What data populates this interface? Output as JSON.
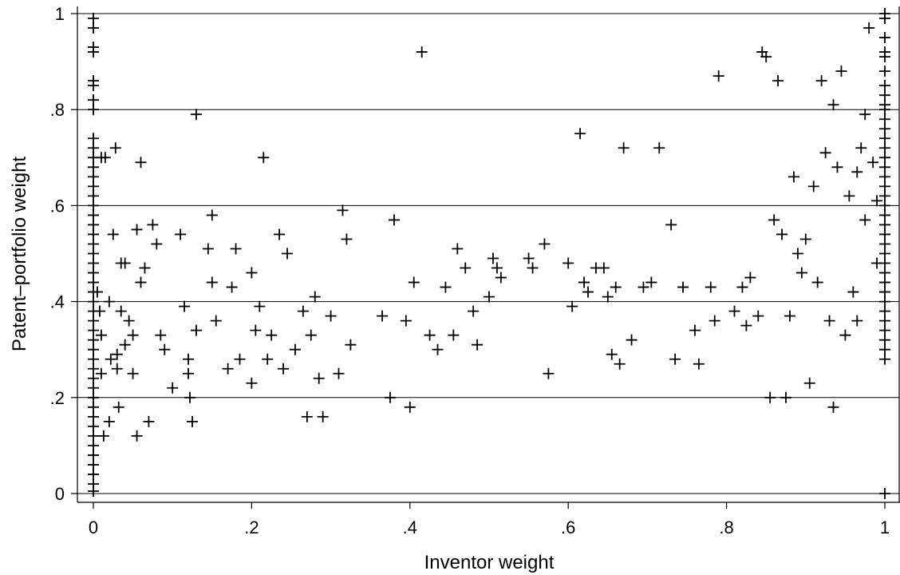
{
  "chart_data": {
    "type": "scatter",
    "title": "",
    "xlabel": "Inventor weight",
    "ylabel": "Patent–portfolio weight",
    "xlim": [
      0,
      1
    ],
    "ylim": [
      0,
      1
    ],
    "grid": "horizontal",
    "marker": "plus",
    "x_ticks": [
      {
        "value": 0,
        "label": "0"
      },
      {
        "value": 0.2,
        "label": ".2"
      },
      {
        "value": 0.4,
        "label": ".4"
      },
      {
        "value": 0.6,
        "label": ".6"
      },
      {
        "value": 0.8,
        "label": ".8"
      },
      {
        "value": 1,
        "label": "1"
      }
    ],
    "y_ticks": [
      {
        "value": 0,
        "label": "0"
      },
      {
        "value": 0.2,
        "label": ".2"
      },
      {
        "value": 0.4,
        "label": ".4"
      },
      {
        "value": 0.6,
        "label": ".6"
      },
      {
        "value": 0.8,
        "label": ".8"
      },
      {
        "value": 1,
        "label": "1"
      }
    ],
    "points": [
      [
        0,
        0.99
      ],
      [
        0,
        0.97
      ],
      [
        0,
        0.93
      ],
      [
        0,
        0.92
      ],
      [
        0,
        0.86
      ],
      [
        0,
        0.85
      ],
      [
        0,
        0.82
      ],
      [
        0,
        0.8
      ],
      [
        0,
        0.74
      ],
      [
        0,
        0.72
      ],
      [
        0,
        0.7
      ],
      [
        0,
        0.68
      ],
      [
        0,
        0.66
      ],
      [
        0,
        0.64
      ],
      [
        0,
        0.62
      ],
      [
        0,
        0.6
      ],
      [
        0,
        0.58
      ],
      [
        0,
        0.56
      ],
      [
        0,
        0.54
      ],
      [
        0,
        0.52
      ],
      [
        0,
        0.5
      ],
      [
        0,
        0.48
      ],
      [
        0,
        0.46
      ],
      [
        0,
        0.44
      ],
      [
        0,
        0.42
      ],
      [
        0,
        0.4
      ],
      [
        0,
        0.38
      ],
      [
        0,
        0.36
      ],
      [
        0,
        0.34
      ],
      [
        0,
        0.32
      ],
      [
        0,
        0.3
      ],
      [
        0,
        0.28
      ],
      [
        0,
        0.26
      ],
      [
        0,
        0.24
      ],
      [
        0,
        0.22
      ],
      [
        0,
        0.2
      ],
      [
        0,
        0.18
      ],
      [
        0,
        0.16
      ],
      [
        0,
        0.14
      ],
      [
        0,
        0.12
      ],
      [
        0,
        0.1
      ],
      [
        0,
        0.08
      ],
      [
        0,
        0.06
      ],
      [
        0,
        0.04
      ],
      [
        0,
        0.02
      ],
      [
        0,
        0.005
      ],
      [
        1,
        1.0
      ],
      [
        1,
        0.99
      ],
      [
        1,
        0.95
      ],
      [
        1,
        0.92
      ],
      [
        1,
        0.91
      ],
      [
        1,
        0.88
      ],
      [
        1,
        0.85
      ],
      [
        1,
        0.83
      ],
      [
        1,
        0.81
      ],
      [
        1,
        0.8
      ],
      [
        1,
        0.78
      ],
      [
        1,
        0.76
      ],
      [
        1,
        0.74
      ],
      [
        1,
        0.72
      ],
      [
        1,
        0.7
      ],
      [
        1,
        0.68
      ],
      [
        1,
        0.66
      ],
      [
        1,
        0.64
      ],
      [
        1,
        0.62
      ],
      [
        1,
        0.6
      ],
      [
        1,
        0.58
      ],
      [
        1,
        0.56
      ],
      [
        1,
        0.54
      ],
      [
        1,
        0.52
      ],
      [
        1,
        0.5
      ],
      [
        1,
        0.48
      ],
      [
        1,
        0.46
      ],
      [
        1,
        0.44
      ],
      [
        1,
        0.42
      ],
      [
        1,
        0.4
      ],
      [
        1,
        0.38
      ],
      [
        1,
        0.36
      ],
      [
        1,
        0.34
      ],
      [
        1,
        0.32
      ],
      [
        1,
        0.3
      ],
      [
        1,
        0.28
      ],
      [
        1,
        0.0
      ],
      [
        0.005,
        0.42
      ],
      [
        0.008,
        0.38
      ],
      [
        0.01,
        0.25
      ],
      [
        0.01,
        0.33
      ],
      [
        0.01,
        0.7
      ],
      [
        0.013,
        0.12
      ],
      [
        0.015,
        0.7
      ],
      [
        0.02,
        0.4
      ],
      [
        0.02,
        0.15
      ],
      [
        0.022,
        0.28
      ],
      [
        0.025,
        0.54
      ],
      [
        0.028,
        0.72
      ],
      [
        0.03,
        0.29
      ],
      [
        0.03,
        0.26
      ],
      [
        0.032,
        0.18
      ],
      [
        0.035,
        0.38
      ],
      [
        0.035,
        0.48
      ],
      [
        0.04,
        0.48
      ],
      [
        0.04,
        0.31
      ],
      [
        0.045,
        0.36
      ],
      [
        0.05,
        0.25
      ],
      [
        0.05,
        0.33
      ],
      [
        0.055,
        0.55
      ],
      [
        0.055,
        0.12
      ],
      [
        0.06,
        0.69
      ],
      [
        0.06,
        0.44
      ],
      [
        0.065,
        0.47
      ],
      [
        0.07,
        0.15
      ],
      [
        0.075,
        0.56
      ],
      [
        0.08,
        0.52
      ],
      [
        0.085,
        0.33
      ],
      [
        0.09,
        0.3
      ],
      [
        0.1,
        0.22
      ],
      [
        0.11,
        0.54
      ],
      [
        0.115,
        0.39
      ],
      [
        0.12,
        0.28
      ],
      [
        0.12,
        0.25
      ],
      [
        0.122,
        0.2
      ],
      [
        0.125,
        0.15
      ],
      [
        0.13,
        0.79
      ],
      [
        0.13,
        0.34
      ],
      [
        0.145,
        0.51
      ],
      [
        0.15,
        0.58
      ],
      [
        0.15,
        0.44
      ],
      [
        0.155,
        0.36
      ],
      [
        0.17,
        0.26
      ],
      [
        0.175,
        0.43
      ],
      [
        0.18,
        0.51
      ],
      [
        0.185,
        0.28
      ],
      [
        0.2,
        0.46
      ],
      [
        0.2,
        0.23
      ],
      [
        0.205,
        0.34
      ],
      [
        0.21,
        0.39
      ],
      [
        0.215,
        0.7
      ],
      [
        0.22,
        0.28
      ],
      [
        0.225,
        0.33
      ],
      [
        0.235,
        0.54
      ],
      [
        0.24,
        0.26
      ],
      [
        0.245,
        0.5
      ],
      [
        0.255,
        0.3
      ],
      [
        0.265,
        0.38
      ],
      [
        0.27,
        0.16
      ],
      [
        0.275,
        0.33
      ],
      [
        0.28,
        0.41
      ],
      [
        0.285,
        0.24
      ],
      [
        0.29,
        0.16
      ],
      [
        0.3,
        0.37
      ],
      [
        0.31,
        0.25
      ],
      [
        0.315,
        0.59
      ],
      [
        0.32,
        0.53
      ],
      [
        0.325,
        0.31
      ],
      [
        0.365,
        0.37
      ],
      [
        0.375,
        0.2
      ],
      [
        0.38,
        0.57
      ],
      [
        0.395,
        0.36
      ],
      [
        0.4,
        0.18
      ],
      [
        0.405,
        0.44
      ],
      [
        0.415,
        0.92
      ],
      [
        0.425,
        0.33
      ],
      [
        0.435,
        0.3
      ],
      [
        0.445,
        0.43
      ],
      [
        0.455,
        0.33
      ],
      [
        0.46,
        0.51
      ],
      [
        0.47,
        0.47
      ],
      [
        0.48,
        0.38
      ],
      [
        0.485,
        0.31
      ],
      [
        0.5,
        0.41
      ],
      [
        0.505,
        0.49
      ],
      [
        0.51,
        0.47
      ],
      [
        0.515,
        0.45
      ],
      [
        0.55,
        0.49
      ],
      [
        0.555,
        0.47
      ],
      [
        0.57,
        0.52
      ],
      [
        0.575,
        0.25
      ],
      [
        0.6,
        0.48
      ],
      [
        0.605,
        0.39
      ],
      [
        0.615,
        0.75
      ],
      [
        0.62,
        0.44
      ],
      [
        0.625,
        0.42
      ],
      [
        0.635,
        0.47
      ],
      [
        0.645,
        0.47
      ],
      [
        0.65,
        0.41
      ],
      [
        0.655,
        0.29
      ],
      [
        0.66,
        0.43
      ],
      [
        0.665,
        0.27
      ],
      [
        0.67,
        0.72
      ],
      [
        0.68,
        0.32
      ],
      [
        0.695,
        0.43
      ],
      [
        0.705,
        0.44
      ],
      [
        0.715,
        0.72
      ],
      [
        0.73,
        0.56
      ],
      [
        0.735,
        0.28
      ],
      [
        0.745,
        0.43
      ],
      [
        0.76,
        0.34
      ],
      [
        0.765,
        0.27
      ],
      [
        0.78,
        0.43
      ],
      [
        0.785,
        0.36
      ],
      [
        0.79,
        0.87
      ],
      [
        0.81,
        0.38
      ],
      [
        0.82,
        0.43
      ],
      [
        0.825,
        0.35
      ],
      [
        0.83,
        0.45
      ],
      [
        0.84,
        0.37
      ],
      [
        0.845,
        0.92
      ],
      [
        0.85,
        0.91
      ],
      [
        0.855,
        0.2
      ],
      [
        0.86,
        0.57
      ],
      [
        0.865,
        0.86
      ],
      [
        0.87,
        0.54
      ],
      [
        0.875,
        0.2
      ],
      [
        0.88,
        0.37
      ],
      [
        0.885,
        0.66
      ],
      [
        0.89,
        0.5
      ],
      [
        0.895,
        0.46
      ],
      [
        0.9,
        0.53
      ],
      [
        0.905,
        0.23
      ],
      [
        0.91,
        0.64
      ],
      [
        0.915,
        0.44
      ],
      [
        0.92,
        0.86
      ],
      [
        0.925,
        0.71
      ],
      [
        0.93,
        0.36
      ],
      [
        0.935,
        0.81
      ],
      [
        0.935,
        0.18
      ],
      [
        0.94,
        0.68
      ],
      [
        0.945,
        0.88
      ],
      [
        0.95,
        0.33
      ],
      [
        0.955,
        0.62
      ],
      [
        0.96,
        0.42
      ],
      [
        0.965,
        0.67
      ],
      [
        0.965,
        0.36
      ],
      [
        0.97,
        0.72
      ],
      [
        0.975,
        0.79
      ],
      [
        0.975,
        0.57
      ],
      [
        0.98,
        0.97
      ],
      [
        0.985,
        0.69
      ],
      [
        0.99,
        0.61
      ],
      [
        0.99,
        0.48
      ]
    ]
  }
}
